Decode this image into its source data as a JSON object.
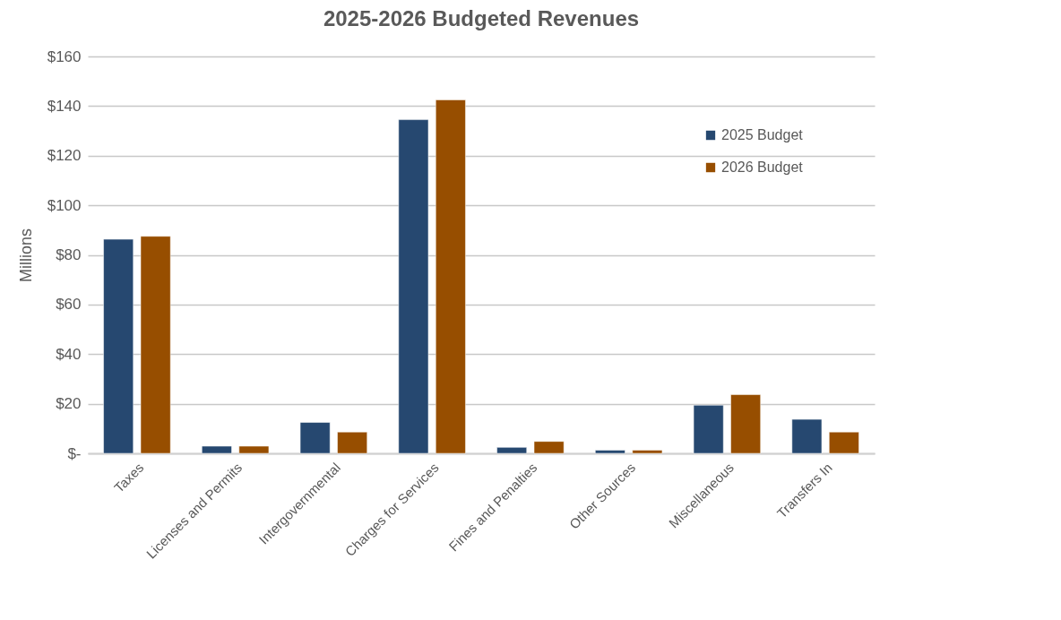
{
  "chart_data": {
    "type": "bar",
    "title": "2025-2026 Budgeted Revenues",
    "ylabel": "Millions",
    "categories": [
      "Taxes",
      "Licenses and Permits",
      "Intergovernmental",
      "Charges for Services",
      "Fines and Penalties",
      "Other Sources",
      "Miscellaneous",
      "Transfers In"
    ],
    "series": [
      {
        "name": "2025 Budget",
        "color": "#264870",
        "values": [
          86.3,
          2.9,
          12.5,
          134.5,
          2.4,
          1.3,
          19.4,
          13.7
        ]
      },
      {
        "name": "2026 Budget",
        "color": "#974e00",
        "values": [
          87.5,
          2.9,
          8.6,
          142.5,
          4.8,
          1.3,
          23.7,
          8.6
        ]
      }
    ],
    "ylim": [
      0,
      160
    ],
    "yticks": [
      {
        "value": 0,
        "label": "$-"
      },
      {
        "value": 20,
        "label": "$20"
      },
      {
        "value": 40,
        "label": "$40"
      },
      {
        "value": 60,
        "label": "$60"
      },
      {
        "value": 80,
        "label": "$80"
      },
      {
        "value": 100,
        "label": "$100"
      },
      {
        "value": 120,
        "label": "$120"
      },
      {
        "value": 140,
        "label": "$140"
      },
      {
        "value": 160,
        "label": "$160"
      }
    ],
    "grid": "y",
    "legend": "top right"
  }
}
